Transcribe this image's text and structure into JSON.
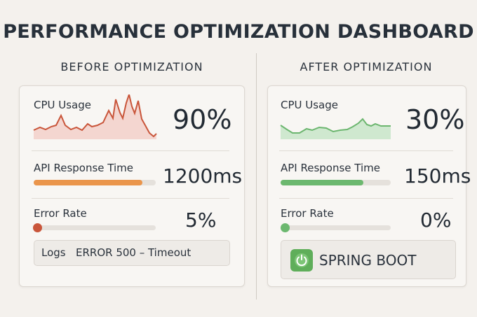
{
  "title": "PERFORMANCE OPTIMIZATION DASHBOARD",
  "before": {
    "heading": "BEFORE OPTIMIZATION",
    "cpu": {
      "label": "CPU Usage",
      "value": "90%"
    },
    "api": {
      "label": "API Response Time",
      "value": "1200ms"
    },
    "error": {
      "label": "Error Rate",
      "value": "5%"
    },
    "logs": {
      "label": "Logs",
      "message": "ERROR 500 – Timeout"
    }
  },
  "after": {
    "heading": "AFTER OPTIMIZATION",
    "cpu": {
      "label": "CPU Usage",
      "value": "30%"
    },
    "api": {
      "label": "API Response Time",
      "value": "150ms"
    },
    "error": {
      "label": "Error Rate",
      "value": "0%"
    },
    "badge": "SPRING BOOT"
  }
}
